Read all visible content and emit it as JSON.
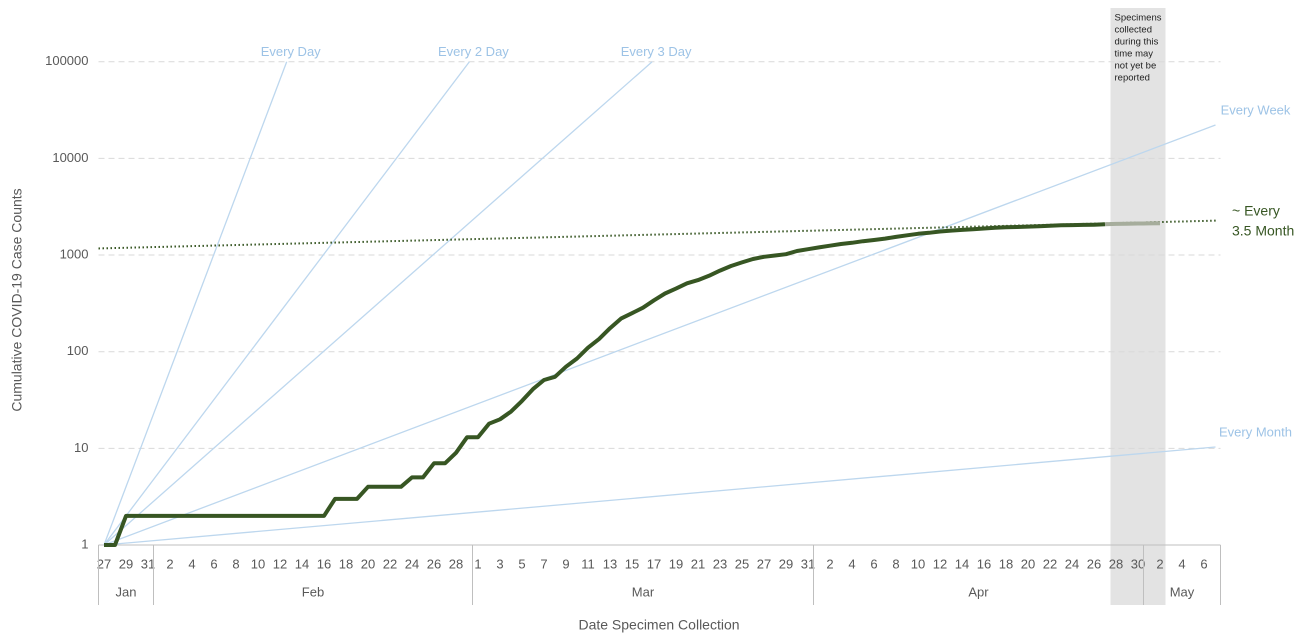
{
  "chart_data": {
    "type": "line",
    "x_label": "Date Specimen Collection",
    "y_label": "Cumulative COVID-19 Case Counts",
    "log_scale": true,
    "grid": true,
    "ylim": [
      1,
      160000
    ],
    "yticks": [
      1,
      10,
      100,
      1000,
      10000,
      100000
    ],
    "categories": [
      "27",
      null,
      "29",
      null,
      "31",
      null,
      "2",
      null,
      "4",
      null,
      "6",
      null,
      "8",
      null,
      "10",
      null,
      "12",
      null,
      "14",
      null,
      "16",
      null,
      "18",
      null,
      "20",
      null,
      "22",
      null,
      "24",
      null,
      "26",
      null,
      "28",
      null,
      "1",
      null,
      "3",
      null,
      "5",
      null,
      "7",
      null,
      "9",
      null,
      "11",
      null,
      "13",
      null,
      "15",
      null,
      "17",
      null,
      "19",
      null,
      "21",
      null,
      "23",
      null,
      "25",
      null,
      "27",
      null,
      "29",
      null,
      "31",
      null,
      "2",
      null,
      "4",
      null,
      "6",
      null,
      "8",
      null,
      "10",
      null,
      "12",
      null,
      "14",
      null,
      "16",
      null,
      "18",
      null,
      "20",
      null,
      "22",
      null,
      "24",
      null,
      "26",
      null,
      "28",
      null,
      "30",
      null,
      "2",
      null,
      "4",
      null,
      "6",
      null
    ],
    "months": [
      {
        "label": "Jan",
        "count": 5
      },
      {
        "label": "Feb",
        "count": 29
      },
      {
        "label": "Mar",
        "count": 31
      },
      {
        "label": "Apr",
        "count": 30
      },
      {
        "label": "May",
        "count": 7
      }
    ],
    "series": [
      {
        "color": "#375623",
        "values": [
          1,
          1,
          2,
          2,
          2,
          2,
          2,
          2,
          2,
          2,
          2,
          2,
          2,
          2,
          2,
          2,
          2,
          2,
          2,
          2,
          2,
          3,
          3,
          3,
          4,
          4,
          4,
          4,
          5,
          5,
          7,
          7,
          9,
          13,
          13,
          18,
          20,
          24,
          31,
          41,
          51,
          55,
          70,
          85,
          110,
          135,
          175,
          220,
          250,
          285,
          340,
          400,
          450,
          510,
          550,
          610,
          690,
          770,
          840,
          910,
          960,
          990,
          1020,
          1100,
          1150,
          1200,
          1250,
          1300,
          1340,
          1390,
          1430,
          1480,
          1540,
          1600,
          1660,
          1700,
          1750,
          1790,
          1820,
          1850,
          1880,
          1920,
          1940,
          1950,
          1970,
          1990,
          2010,
          2030,
          2040,
          2050,
          2060,
          2080,
          null,
          null,
          null,
          null,
          null,
          null,
          null,
          null,
          null,
          null
        ]
      },
      {
        "color": "#a6ad9c",
        "values": [
          null,
          null,
          null,
          null,
          null,
          null,
          null,
          null,
          null,
          null,
          null,
          null,
          null,
          null,
          null,
          null,
          null,
          null,
          null,
          null,
          null,
          null,
          null,
          null,
          null,
          null,
          null,
          null,
          null,
          null,
          null,
          null,
          null,
          null,
          null,
          null,
          null,
          null,
          null,
          null,
          null,
          null,
          null,
          null,
          null,
          null,
          null,
          null,
          null,
          null,
          null,
          null,
          null,
          null,
          null,
          null,
          null,
          null,
          null,
          null,
          null,
          null,
          null,
          null,
          null,
          null,
          null,
          null,
          null,
          null,
          null,
          null,
          null,
          null,
          null,
          null,
          null,
          null,
          null,
          null,
          null,
          null,
          null,
          null,
          null,
          null,
          null,
          null,
          null,
          null,
          null,
          2080,
          2100,
          2110,
          2120,
          2125,
          2130,
          null,
          null,
          null,
          null,
          null
        ]
      }
    ],
    "reference_lines": [
      {
        "label": "Every Day",
        "doubling_days": 1
      },
      {
        "label": "Every 2 Day",
        "doubling_days": 2
      },
      {
        "label": "Every 3 Day",
        "doubling_days": 3
      },
      {
        "label": "Every Week",
        "doubling_days": 7
      },
      {
        "label": "Every Month",
        "doubling_days": 30
      }
    ],
    "reference_color": "#bdd7ee",
    "reference_label_color": "#9dc3e6",
    "trend": {
      "label": [
        "~ Every",
        "3.5 Month"
      ],
      "start": 1170,
      "end": 2270,
      "color": "#375623"
    },
    "shaded_region": {
      "start_index": 92,
      "end_index": 96,
      "color": "#e3e3e3",
      "label": [
        "Specimens",
        "collected",
        "during this",
        "time may",
        "not yet be",
        "reported"
      ]
    }
  }
}
